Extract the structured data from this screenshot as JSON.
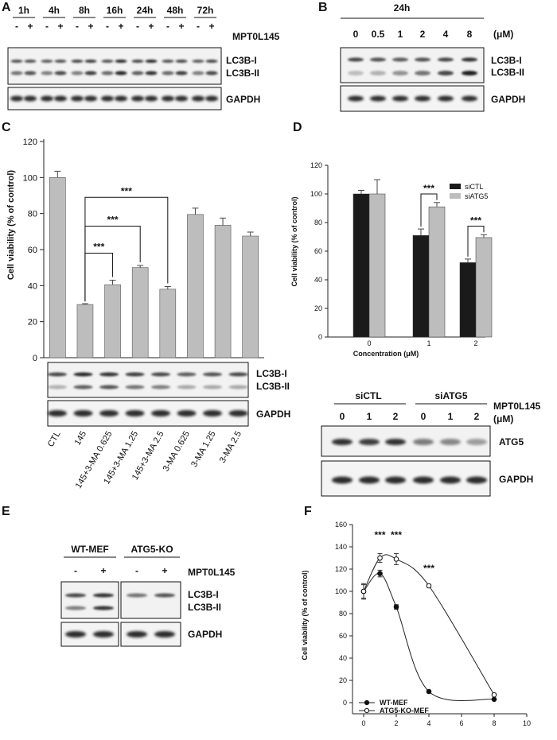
{
  "panels": [
    "A",
    "B",
    "C",
    "D",
    "E",
    "F"
  ],
  "panel_a": {
    "times": [
      "1h",
      "4h",
      "8h",
      "16h",
      "24h",
      "48h",
      "72h"
    ],
    "treatment_signs": [
      "-",
      "+"
    ],
    "treatment_label": "MPT0L145",
    "blot_labels": [
      "LC3B-I",
      "LC3B-II"
    ],
    "loading_label": "GAPDH"
  },
  "panel_b": {
    "time": "24h",
    "doses": [
      "0",
      "0.5",
      "1",
      "2",
      "4",
      "8"
    ],
    "unit": "(μM)",
    "blot_labels": [
      "LC3B-I",
      "LC3B-II"
    ],
    "loading_label": "GAPDH"
  },
  "panel_c_blot": {
    "blot_labels": [
      "LC3B-I",
      "LC3B-II"
    ],
    "loading_label": "GAPDH",
    "lane_labels": [
      "CTL",
      "145",
      "145+3-MA 0.625",
      "145+3-MA 1.25",
      "145+3-MA 2.5",
      "3-MA 0.625",
      "3-MA 1.25",
      "3-MA 2.5"
    ]
  },
  "panel_d_blot": {
    "groups": [
      "siCTL",
      "siATG5"
    ],
    "doses": [
      "0",
      "1",
      "2",
      "0",
      "1",
      "2"
    ],
    "treatment_label": "MPT0L145",
    "unit": "(μM)",
    "blot_label": "ATG5",
    "loading_label": "GAPDH"
  },
  "panel_e": {
    "groups": [
      "WT-MEF",
      "ATG5-KO"
    ],
    "signs": [
      "-",
      "+",
      "-",
      "+"
    ],
    "treatment_label": "MPT0L145",
    "blot_labels": [
      "LC3B-I",
      "LC3B-II"
    ],
    "loading_label": "GAPDH"
  },
  "chart_data": [
    {
      "id": "C",
      "type": "bar",
      "ylabel": "Cell viability (% of control)",
      "ylim": [
        0,
        120
      ],
      "yticks": [
        0,
        20,
        40,
        60,
        80,
        100,
        120
      ],
      "categories": [
        "CTL",
        "145",
        "145+3-MA 0.625",
        "145+3-MA 1.25",
        "145+3-MA 2.5",
        "3-MA 0.625",
        "3-MA 1.25",
        "3-MA 2.5"
      ],
      "values": [
        100,
        29.5,
        40.5,
        50,
        38,
        79.5,
        73.5,
        67.5
      ],
      "errors": [
        3.5,
        0.5,
        2.5,
        1.2,
        1.5,
        3.5,
        4,
        2.2
      ],
      "color": "#bdbdbd",
      "significance": [
        {
          "from": 1,
          "to": 2,
          "label": "***"
        },
        {
          "from": 1,
          "to": 3,
          "label": "***"
        },
        {
          "from": 1,
          "to": 4,
          "label": "***"
        }
      ]
    },
    {
      "id": "D",
      "type": "bar",
      "xlabel": "Concentration (μM)",
      "ylabel": "Cell viability (% of control)",
      "ylim": [
        0,
        120
      ],
      "yticks": [
        0,
        20,
        40,
        60,
        80,
        100,
        120
      ],
      "categories": [
        "0",
        "1",
        "2"
      ],
      "series": [
        {
          "name": "siCTL",
          "color": "#1a1a1a",
          "values": [
            100,
            71,
            52
          ],
          "errors": [
            2.5,
            4.5,
            2.5
          ]
        },
        {
          "name": "siATG5",
          "color": "#bdbdbd",
          "values": [
            100,
            91,
            69.5
          ],
          "errors": [
            10,
            3,
            2
          ]
        }
      ],
      "legend": "top-right",
      "significance": [
        {
          "category": 1,
          "label": "***"
        },
        {
          "category": 2,
          "label": "***"
        }
      ]
    },
    {
      "id": "F",
      "type": "line",
      "ylabel": "Cell viability (% of control)",
      "xlim": [
        0,
        10
      ],
      "ylim": [
        0,
        160
      ],
      "xticks": [
        0,
        2,
        4,
        6,
        8,
        10
      ],
      "yticks": [
        0,
        20,
        40,
        60,
        80,
        100,
        120,
        140,
        160
      ],
      "x": [
        0,
        1,
        2,
        4,
        8
      ],
      "series": [
        {
          "name": "WT-MEF",
          "marker": "filled",
          "values": [
            100,
            116,
            86,
            10,
            3
          ],
          "errors": [
            7,
            3,
            2,
            0.5,
            0.5
          ]
        },
        {
          "name": "ATG5-KO-MEF",
          "marker": "open",
          "values": [
            100,
            130,
            129,
            105,
            7
          ],
          "errors": [
            6,
            4,
            5,
            1,
            1
          ]
        }
      ],
      "legend": "bottom-left",
      "significance": [
        {
          "x": 1,
          "label": "***"
        },
        {
          "x": 2,
          "label": "***"
        },
        {
          "x": 4,
          "label": "***"
        }
      ]
    }
  ]
}
